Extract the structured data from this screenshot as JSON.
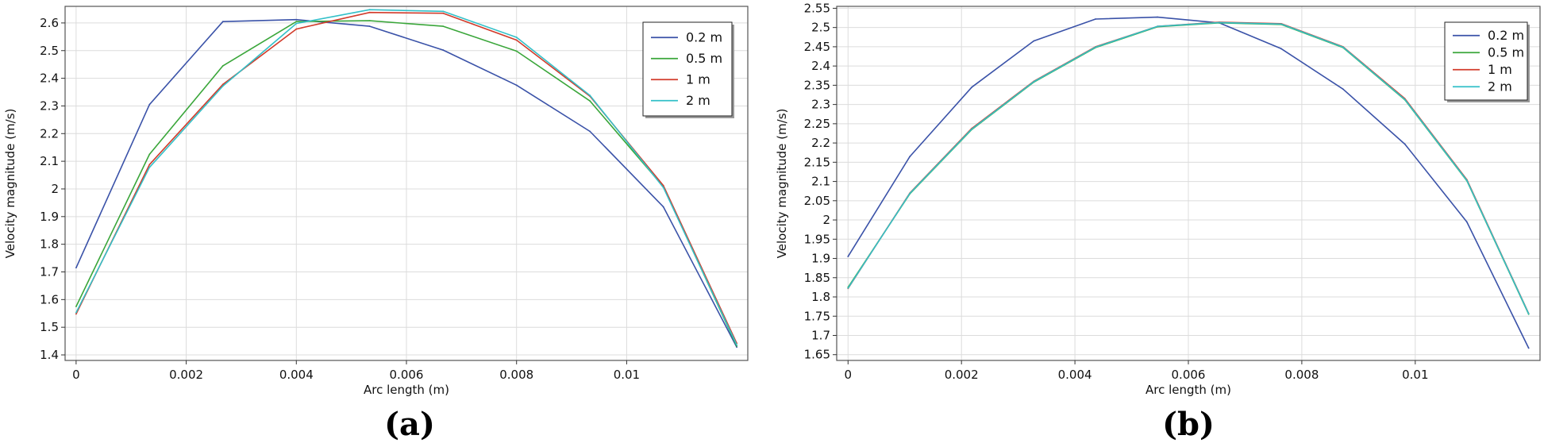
{
  "chart_data": [
    {
      "type": "line",
      "panel_label": "(a)",
      "xlabel": "Arc length (m)",
      "ylabel": "Velocity magnitude (m/s)",
      "xlim": [
        -0.0002,
        0.0122
      ],
      "ylim": [
        1.38,
        2.66
      ],
      "x_ticks": [
        0,
        0.002,
        0.004,
        0.006,
        0.008,
        0.01
      ],
      "x_tick_labels": [
        "0",
        "0.002",
        "0.004",
        "0.006",
        "0.008",
        "0.01"
      ],
      "y_ticks": [
        1.4,
        1.5,
        1.6,
        1.7,
        1.8,
        1.9,
        2.0,
        2.1,
        2.2,
        2.3,
        2.4,
        2.5,
        2.6
      ],
      "y_tick_labels": [
        "1.4",
        "1.5",
        "1.6",
        "1.7",
        "1.8",
        "1.9",
        "2",
        "2.1",
        "2.2",
        "2.3",
        "2.4",
        "2.5",
        "2.6"
      ],
      "grid": true,
      "legend_position": "top-right",
      "x": [
        0,
        0.001333,
        0.002667,
        0.004,
        0.005333,
        0.006667,
        0.008,
        0.009333,
        0.010667,
        0.012
      ],
      "series": [
        {
          "name": "0.2 m",
          "color": "#3a52a8",
          "values": [
            1.715,
            2.305,
            2.605,
            2.612,
            2.588,
            2.502,
            2.375,
            2.208,
            1.935,
            1.428
          ]
        },
        {
          "name": "0.5 m",
          "color": "#3aa63a",
          "values": [
            1.575,
            2.125,
            2.445,
            2.605,
            2.608,
            2.588,
            2.498,
            2.318,
            2.008,
            1.432
          ]
        },
        {
          "name": "1 m",
          "color": "#d23b2b",
          "values": [
            1.548,
            2.088,
            2.378,
            2.578,
            2.638,
            2.635,
            2.538,
            2.335,
            2.012,
            1.442
          ]
        },
        {
          "name": "2 m",
          "color": "#33c0c8",
          "values": [
            1.553,
            2.078,
            2.372,
            2.598,
            2.648,
            2.642,
            2.548,
            2.338,
            2.005,
            1.436
          ]
        }
      ]
    },
    {
      "type": "line",
      "panel_label": "(b)",
      "xlabel": "Arc length (m)",
      "ylabel": "Velocity magnitude (m/s)",
      "xlim": [
        -0.0002,
        0.0122
      ],
      "ylim": [
        1.635,
        2.555
      ],
      "x_ticks": [
        0,
        0.002,
        0.004,
        0.006,
        0.008,
        0.01
      ],
      "x_tick_labels": [
        "0",
        "0.002",
        "0.004",
        "0.006",
        "0.008",
        "0.01"
      ],
      "y_ticks": [
        1.65,
        1.7,
        1.75,
        1.8,
        1.85,
        1.9,
        1.95,
        2.0,
        2.05,
        2.1,
        2.15,
        2.2,
        2.25,
        2.3,
        2.35,
        2.4,
        2.45,
        2.5,
        2.55
      ],
      "y_tick_labels": [
        "1.65",
        "1.7",
        "1.75",
        "1.8",
        "1.85",
        "1.9",
        "1.95",
        "2",
        "2.05",
        "2.1",
        "2.15",
        "2.2",
        "2.25",
        "2.3",
        "2.35",
        "2.4",
        "2.45",
        "2.5",
        "2.55"
      ],
      "grid": true,
      "legend_position": "top-right",
      "x": [
        0,
        0.001091,
        0.002182,
        0.003273,
        0.004364,
        0.005455,
        0.006545,
        0.007636,
        0.008727,
        0.009818,
        0.010909,
        0.012
      ],
      "series": [
        {
          "name": "0.2 m",
          "color": "#3a52a8",
          "values": [
            1.905,
            2.165,
            2.345,
            2.465,
            2.522,
            2.527,
            2.512,
            2.445,
            2.34,
            2.197,
            1.995,
            1.667
          ]
        },
        {
          "name": "0.5 m",
          "color": "#3aa63a",
          "values": [
            1.825,
            2.068,
            2.235,
            2.358,
            2.448,
            2.502,
            2.512,
            2.508,
            2.448,
            2.312,
            2.102,
            1.755
          ]
        },
        {
          "name": "1 m",
          "color": "#d23b2b",
          "values": [
            1.822,
            2.07,
            2.238,
            2.36,
            2.45,
            2.503,
            2.514,
            2.51,
            2.45,
            2.315,
            2.105,
            1.757
          ]
        },
        {
          "name": "2 m",
          "color": "#33c0c8",
          "values": [
            1.823,
            2.069,
            2.236,
            2.359,
            2.449,
            2.503,
            2.513,
            2.509,
            2.449,
            2.313,
            2.103,
            1.756
          ]
        }
      ]
    }
  ]
}
